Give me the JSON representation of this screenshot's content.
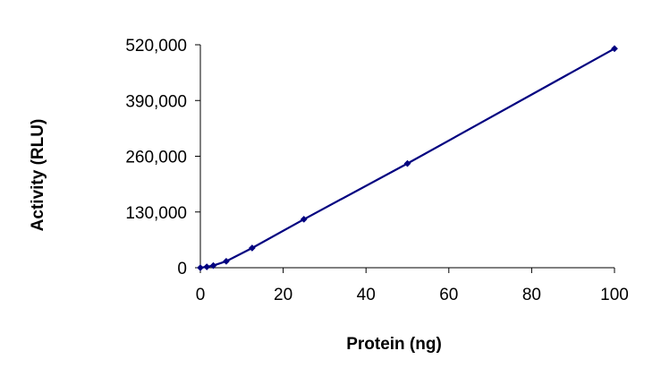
{
  "chart_data": {
    "type": "line",
    "title": "",
    "xlabel": "Protein (ng)",
    "ylabel": "Activity (RLU)",
    "xlim": [
      0,
      100
    ],
    "ylim": [
      0,
      520000
    ],
    "x_ticks": [
      0,
      20,
      40,
      60,
      80,
      100
    ],
    "x_tick_labels": [
      "0",
      "20",
      "40",
      "60",
      "80",
      "100"
    ],
    "y_ticks": [
      0,
      130000,
      260000,
      390000,
      520000
    ],
    "y_tick_labels": [
      "0",
      "130,000",
      "260,000",
      "390,000",
      "520,000"
    ],
    "grid": false,
    "legend": "none",
    "series": [
      {
        "color": "#000080",
        "marker": "diamond",
        "x": [
          0,
          1.56,
          3.13,
          6.25,
          12.5,
          25,
          50,
          100
        ],
        "y": [
          0,
          2000,
          5000,
          15000,
          46000,
          113000,
          243000,
          511000
        ]
      }
    ]
  }
}
